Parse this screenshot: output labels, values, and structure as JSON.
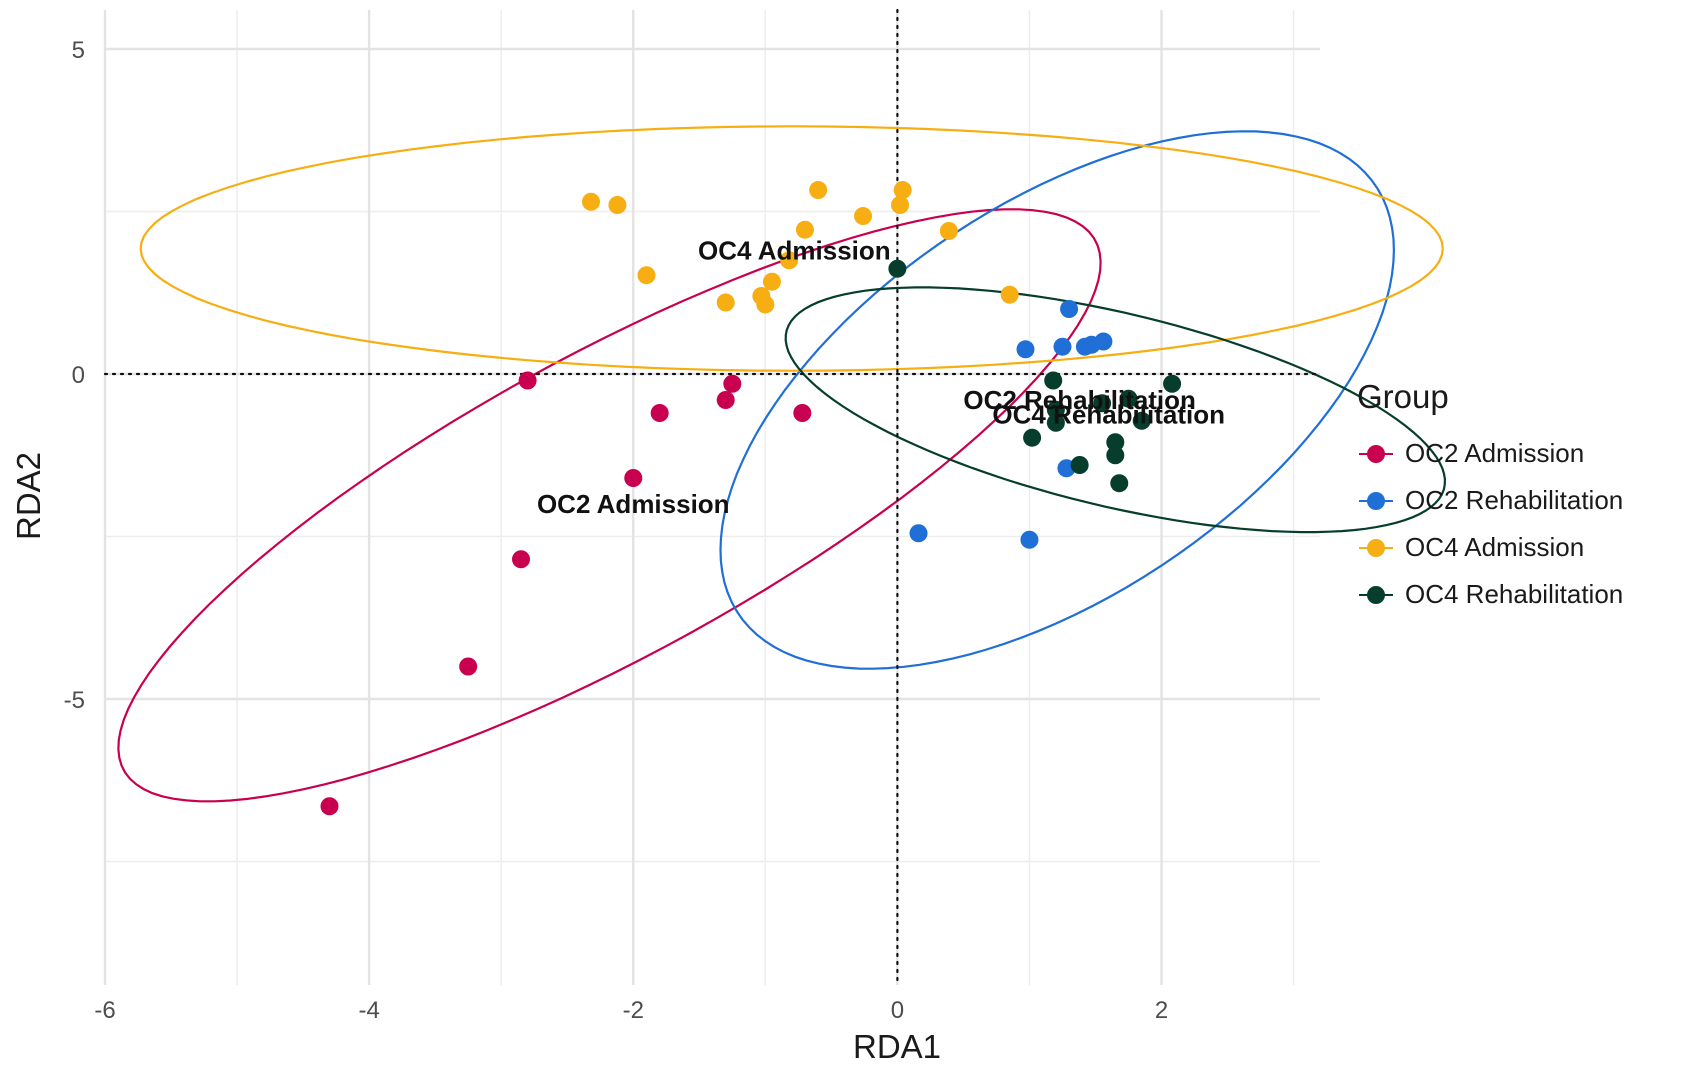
{
  "chart_data": {
    "type": "scatter",
    "xlabel": "RDA1",
    "ylabel": "RDA2",
    "xlim": [
      -6.0,
      3.2
    ],
    "ylim": [
      -9.4,
      5.6
    ],
    "x_ticks": [
      -6,
      -4,
      -2,
      0,
      2
    ],
    "y_ticks": [
      5,
      0,
      -5
    ],
    "x_tick_labels": [
      "-6",
      "-4",
      "-2",
      "0",
      "2"
    ],
    "y_tick_labels": [
      "5",
      "0",
      "-5"
    ],
    "grid": true,
    "reference_lines": {
      "x": 0,
      "y": 0,
      "style": "dotted"
    },
    "legend": {
      "title": "Group",
      "position": "right"
    },
    "series": [
      {
        "name": "OC2 Admission",
        "color": "#C8004F",
        "centroid_label": "OC2 Admission",
        "centroid": [
          -2.0,
          -2.0
        ],
        "ellipse": {
          "center": [
            -2.18,
            -2.02
          ],
          "rx": 5.62,
          "ry": 1.73,
          "angle_deg": 52
        },
        "points": [
          [
            -2.8,
            -0.1
          ],
          [
            -1.25,
            -0.15
          ],
          [
            -1.3,
            -0.4
          ],
          [
            -1.8,
            -0.6
          ],
          [
            -0.72,
            -0.6
          ],
          [
            -2.0,
            -1.6
          ],
          [
            -2.85,
            -2.85
          ],
          [
            -3.25,
            -4.5
          ],
          [
            -4.3,
            -6.65
          ]
        ]
      },
      {
        "name": "OC2 Rehabilitation",
        "color": "#1F6FD6",
        "centroid_label": "OC2 Rehabilitation",
        "centroid": [
          1.38,
          -0.4
        ],
        "ellipse": {
          "center": [
            1.21,
            -0.4
          ],
          "rx": 4.44,
          "ry": 1.97,
          "angle_deg": 66
        },
        "points": [
          [
            1.3,
            1.0
          ],
          [
            0.97,
            0.38
          ],
          [
            1.25,
            0.42
          ],
          [
            1.42,
            0.42
          ],
          [
            1.47,
            0.45
          ],
          [
            1.56,
            0.5
          ],
          [
            1.28,
            -1.45
          ],
          [
            0.16,
            -2.45
          ],
          [
            1.0,
            -2.55
          ]
        ]
      },
      {
        "name": "OC4 Admission",
        "color": "#F6AE12",
        "centroid_label": "OC4 Admission",
        "centroid": [
          -0.78,
          1.9
        ],
        "ellipse": {
          "center": [
            -0.8,
            1.93
          ],
          "rx": 4.93,
          "ry": 1.88,
          "angle_deg": 0
        },
        "points": [
          [
            -2.32,
            2.65
          ],
          [
            -2.12,
            2.6
          ],
          [
            -0.6,
            2.83
          ],
          [
            0.04,
            2.83
          ],
          [
            0.02,
            2.6
          ],
          [
            -0.26,
            2.43
          ],
          [
            -0.7,
            2.22
          ],
          [
            0.39,
            2.2
          ],
          [
            -0.82,
            1.75
          ],
          [
            -1.03,
            1.2
          ],
          [
            -0.95,
            1.42
          ],
          [
            -1.3,
            1.1
          ],
          [
            -1.0,
            1.07
          ],
          [
            -1.9,
            1.52
          ],
          [
            0.85,
            1.22
          ]
        ]
      },
      {
        "name": "OC4 Rehabilitation",
        "color": "#063D2C",
        "centroid_label": "OC4 Rehabilitation",
        "centroid": [
          1.6,
          -0.62
        ],
        "ellipse": {
          "center": [
            1.65,
            -0.55
          ],
          "rx": 2.82,
          "ry": 1.35,
          "angle_deg": -32
        },
        "points": [
          [
            0.0,
            1.62
          ],
          [
            1.18,
            -0.1
          ],
          [
            2.08,
            -0.15
          ],
          [
            1.75,
            -0.38
          ],
          [
            1.55,
            -0.45
          ],
          [
            1.2,
            -0.55
          ],
          [
            1.85,
            -0.72
          ],
          [
            1.2,
            -0.75
          ],
          [
            1.02,
            -0.98
          ],
          [
            1.65,
            -1.05
          ],
          [
            1.65,
            -1.25
          ],
          [
            1.38,
            -1.4
          ],
          [
            1.68,
            -1.68
          ]
        ]
      }
    ]
  }
}
